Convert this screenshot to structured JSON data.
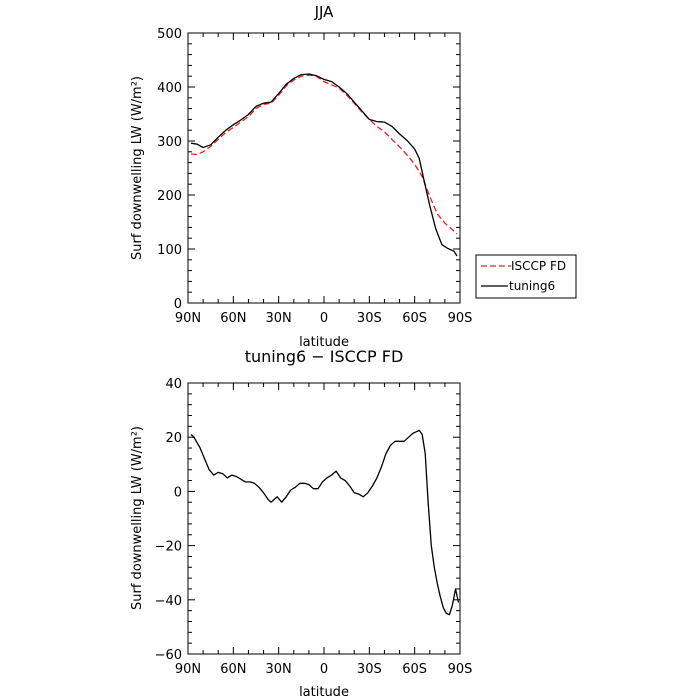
{
  "chart_data": [
    {
      "type": "line",
      "title": "JJA",
      "xlabel": "latitude",
      "ylabel": "Surf downwelling LW (W/m²)",
      "ylim": [
        0,
        500
      ],
      "xlim": [
        90,
        -90
      ],
      "xticks": [
        90,
        60,
        30,
        0,
        -30,
        -60,
        -90
      ],
      "xtick_labels": [
        "90N",
        "60N",
        "30N",
        "0",
        "30S",
        "60S",
        "90S"
      ],
      "yticks": [
        0,
        100,
        200,
        300,
        400,
        500
      ],
      "ytick_labels": [
        "0",
        "100",
        "200",
        "300",
        "400",
        "500"
      ],
      "legend_placement": "right",
      "colors": {
        "ISCCP FD": "#e8201c",
        "tuning6": "#000000"
      },
      "series": [
        {
          "name": "ISCCP FD",
          "style": "dashed",
          "x": [
            88,
            84,
            80,
            75,
            70,
            65,
            60,
            55,
            50,
            45,
            40,
            35,
            30,
            25,
            20,
            15,
            10,
            5,
            0,
            -5,
            -10,
            -15,
            -20,
            -25,
            -30,
            -35,
            -40,
            -45,
            -50,
            -55,
            -60,
            -65,
            -70,
            -75,
            -80,
            -85,
            -88
          ],
          "y": [
            276,
            275,
            280,
            290,
            303,
            316,
            325,
            335,
            345,
            360,
            368,
            370,
            385,
            402,
            413,
            420,
            422,
            420,
            410,
            404,
            398,
            385,
            370,
            354,
            340,
            327,
            317,
            303,
            289,
            274,
            257,
            234,
            197,
            165,
            148,
            136,
            128
          ]
        },
        {
          "name": "tuning6",
          "style": "solid",
          "x": [
            88,
            84,
            80,
            75,
            70,
            65,
            60,
            55,
            50,
            45,
            40,
            35,
            30,
            25,
            20,
            15,
            10,
            5,
            0,
            -5,
            -10,
            -15,
            -20,
            -25,
            -30,
            -35,
            -40,
            -45,
            -50,
            -55,
            -60,
            -63,
            -66,
            -70,
            -74,
            -78,
            -82,
            -86,
            -88
          ],
          "y": [
            296,
            294,
            288,
            293,
            307,
            320,
            330,
            339,
            349,
            364,
            370,
            372,
            388,
            405,
            416,
            423,
            424,
            421,
            414,
            410,
            400,
            388,
            372,
            356,
            340,
            336,
            335,
            327,
            313,
            301,
            285,
            268,
            230,
            180,
            137,
            108,
            101,
            96,
            87
          ]
        }
      ]
    },
    {
      "type": "line",
      "title": "tuning6 − ISCCP FD",
      "xlabel": "latitude",
      "ylabel": "Surf downwelling LW (W/m²)",
      "ylim": [
        -60,
        40
      ],
      "xlim": [
        90,
        -90
      ],
      "xticks": [
        90,
        60,
        30,
        0,
        -30,
        -60,
        -90
      ],
      "xtick_labels": [
        "90N",
        "60N",
        "30N",
        "0",
        "30S",
        "60S",
        "90S"
      ],
      "yticks": [
        -60,
        -40,
        -20,
        0,
        20,
        40
      ],
      "ytick_labels": [
        "−60",
        "−40",
        "−20",
        "0",
        "20",
        "40"
      ],
      "series": [
        {
          "name": "tuning6 − ISCCP FD",
          "style": "solid",
          "x": [
            88,
            86,
            82,
            79,
            76,
            73,
            70,
            67,
            64,
            61,
            58,
            55,
            52,
            49,
            46,
            43,
            40,
            37,
            35,
            33,
            31,
            28,
            25,
            22,
            19,
            16,
            13,
            10,
            7,
            4,
            1,
            -2,
            -5,
            -8,
            -11,
            -14,
            -17,
            -20,
            -23,
            -26,
            -29,
            -32,
            -35,
            -38,
            -41,
            -44,
            -47,
            -50,
            -53,
            -56,
            -59,
            -61,
            -63,
            -65,
            -67,
            -69,
            -71,
            -73,
            -75,
            -77,
            -79,
            -81,
            -83,
            -85,
            -87,
            -89
          ],
          "y": [
            21,
            20,
            16,
            12,
            8,
            6,
            7,
            6.5,
            5,
            6,
            5.5,
            4.5,
            3.5,
            3.5,
            3,
            1.5,
            -0.5,
            -3,
            -4,
            -3,
            -2,
            -4,
            -2,
            0.5,
            1.5,
            3,
            3,
            2.5,
            1,
            1,
            3.5,
            5,
            6,
            7.5,
            5,
            4,
            2,
            -0.5,
            -1,
            -2,
            -0.5,
            2,
            5,
            9,
            14,
            17,
            18.5,
            18.5,
            18.5,
            20,
            21.5,
            22,
            22.5,
            21,
            14,
            -5,
            -20,
            -28,
            -34,
            -39,
            -43,
            -45,
            -45.5,
            -42,
            -36,
            -41
          ]
        }
      ]
    }
  ]
}
